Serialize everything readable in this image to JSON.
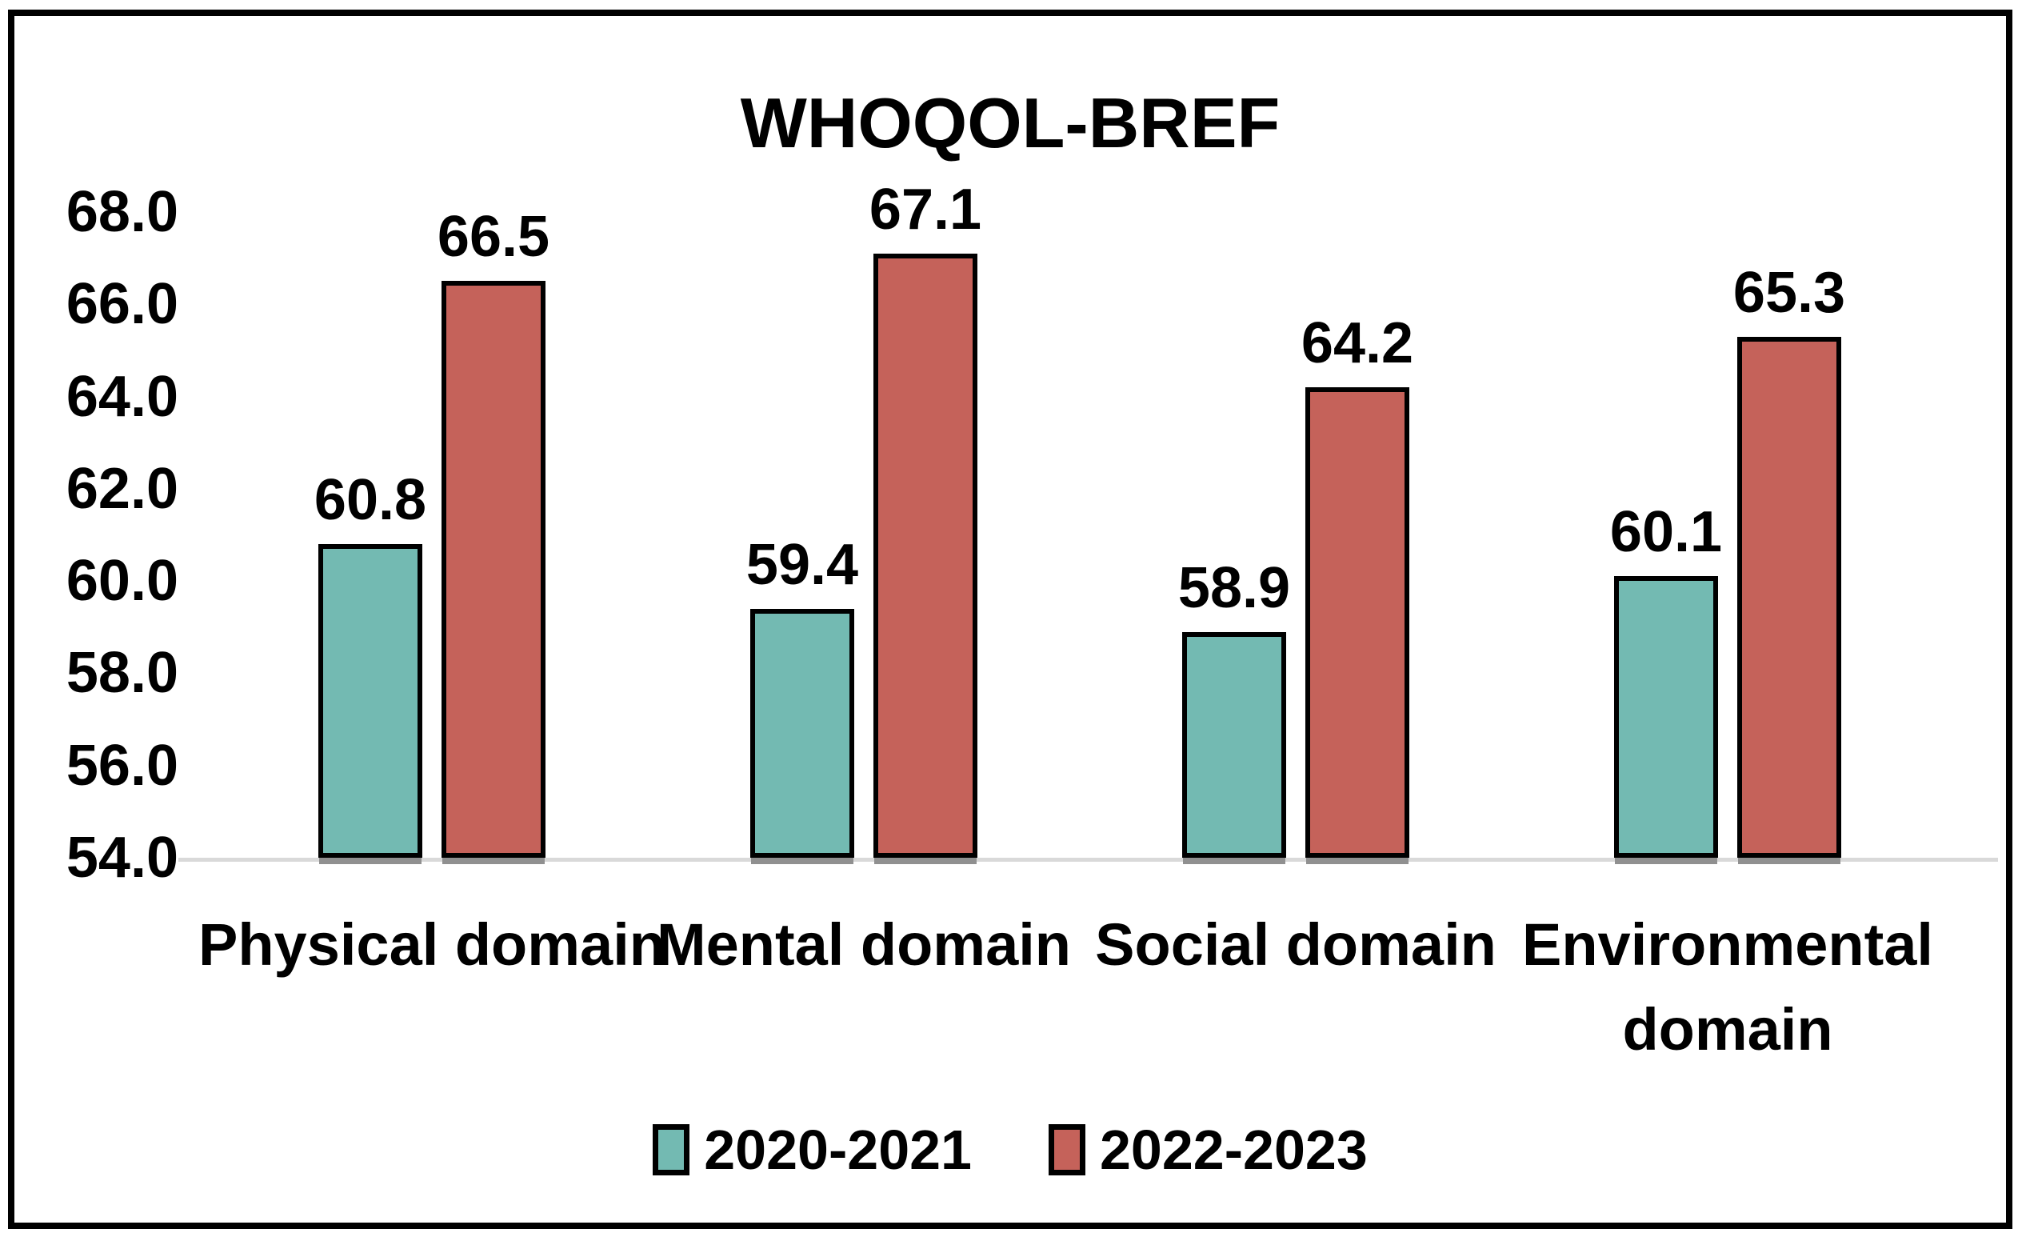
{
  "title": "WHOQOL-BREF",
  "colors": {
    "series1_fill": "#73BAB2",
    "series2_fill": "#C5625A",
    "bar_border": "#000000",
    "bar_shadow": "#909090",
    "axis_line": "#D9D9D9",
    "frame_border": "#000000",
    "text": "#000000",
    "background": "#FFFFFF"
  },
  "chart_data": {
    "type": "bar",
    "title": "WHOQOL-BREF",
    "categories": [
      "Physical domain",
      "Mental domain",
      "Social domain",
      "Environmental domain"
    ],
    "series": [
      {
        "name": "2020-2021",
        "color": "#73BAB2",
        "values": [
          60.8,
          59.4,
          58.9,
          60.1
        ]
      },
      {
        "name": "2022-2023",
        "color": "#C5625A",
        "values": [
          66.5,
          67.1,
          64.2,
          65.3
        ]
      }
    ],
    "ylim": [
      54.0,
      68.0
    ],
    "ytick_step": 2.0,
    "ytick_labels": [
      "54.0",
      "56.0",
      "58.0",
      "60.0",
      "62.0",
      "64.0",
      "66.0",
      "68.0"
    ],
    "ytick_decimals": 1,
    "data_label_decimals": 1,
    "grid": false,
    "data_labels": true,
    "legend_position": "bottom"
  }
}
